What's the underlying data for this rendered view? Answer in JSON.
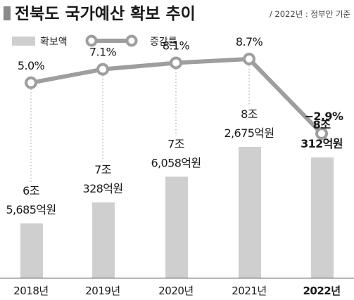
{
  "header": {
    "title": "전북도 국가예산 확보 추이",
    "source": "/ 2022년 : 정부안 기준"
  },
  "legend": {
    "bar_label": "확보액",
    "line_label": "증감률"
  },
  "colors": {
    "bar": "#cfcfcf",
    "line": "#9e9e9e",
    "marker_fill": "#ffffff",
    "text": "#1a1a1a"
  },
  "chart_data": {
    "type": "bar",
    "categories": [
      "2018년",
      "2019년",
      "2020년",
      "2021년",
      "2022년"
    ],
    "bar_labels": [
      [
        "6조",
        "5,685억원"
      ],
      [
        "7조",
        "328억원"
      ],
      [
        "7조",
        "6,058억원"
      ],
      [
        "8조",
        "2,675억원"
      ],
      [
        "8조",
        "312억원"
      ]
    ],
    "series": [
      {
        "name": "확보액",
        "type": "bar",
        "unit": "억원",
        "values": [
          65685,
          70328,
          76058,
          82675,
          80312
        ]
      },
      {
        "name": "증감률",
        "type": "line",
        "unit": "%",
        "values": [
          5.0,
          7.1,
          8.1,
          8.7,
          -2.9
        ],
        "labels": [
          "5.0%",
          "7.1%",
          "8.1%",
          "8.7%",
          "−2.9%"
        ]
      }
    ],
    "highlight_index": 4,
    "legend_position": "top-left",
    "grid": false
  }
}
